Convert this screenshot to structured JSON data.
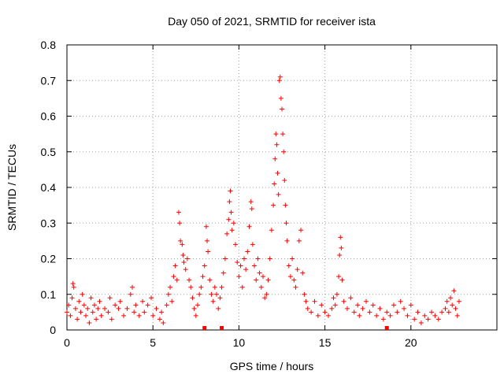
{
  "chart_data": {
    "type": "scatter",
    "title": "Day 050 of 2021, SRMTID for receiver ista",
    "xlabel": "GPS time / hours",
    "ylabel": "SRMTID / TECUs",
    "xlim": [
      0,
      25
    ],
    "ylim": [
      0,
      0.8
    ],
    "xticks": [
      0,
      5,
      10,
      15,
      20
    ],
    "yticks": [
      0,
      0.1,
      0.2,
      0.3,
      0.4,
      0.5,
      0.6,
      0.7,
      0.8
    ],
    "xtick_labels": [
      "0",
      "5",
      "10",
      "15",
      "20"
    ],
    "ytick_labels": [
      "0",
      "0.1",
      "0.2",
      "0.3",
      "0.4",
      "0.5",
      "0.6",
      "0.7",
      "0.8"
    ],
    "grid": true,
    "marker": "+",
    "color": "#ff0000",
    "series": [
      {
        "name": "SRMTID",
        "points": [
          [
            0.0,
            0.05
          ],
          [
            0.1,
            0.07
          ],
          [
            0.2,
            0.04
          ],
          [
            0.3,
            0.09
          ],
          [
            0.35,
            0.13
          ],
          [
            0.4,
            0.12
          ],
          [
            0.5,
            0.06
          ],
          [
            0.6,
            0.03
          ],
          [
            0.7,
            0.08
          ],
          [
            0.8,
            0.05
          ],
          [
            0.9,
            0.1
          ],
          [
            1.0,
            0.07
          ],
          [
            1.1,
            0.04
          ],
          [
            1.2,
            0.06
          ],
          [
            1.3,
            0.02
          ],
          [
            1.4,
            0.09
          ],
          [
            1.5,
            0.05
          ],
          [
            1.6,
            0.07
          ],
          [
            1.7,
            0.03
          ],
          [
            1.8,
            0.06
          ],
          [
            1.9,
            0.08
          ],
          [
            2.0,
            0.04
          ],
          [
            2.2,
            0.06
          ],
          [
            2.4,
            0.05
          ],
          [
            2.5,
            0.09
          ],
          [
            2.6,
            0.03
          ],
          [
            2.8,
            0.07
          ],
          [
            3.0,
            0.06
          ],
          [
            3.1,
            0.08
          ],
          [
            3.3,
            0.04
          ],
          [
            3.5,
            0.06
          ],
          [
            3.7,
            0.1
          ],
          [
            3.8,
            0.12
          ],
          [
            3.9,
            0.05
          ],
          [
            4.0,
            0.07
          ],
          [
            4.2,
            0.04
          ],
          [
            4.4,
            0.08
          ],
          [
            4.5,
            0.05
          ],
          [
            4.7,
            0.07
          ],
          [
            4.9,
            0.09
          ],
          [
            5.0,
            0.04
          ],
          [
            5.2,
            0.06
          ],
          [
            5.4,
            0.03
          ],
          [
            5.5,
            0.05
          ],
          [
            5.6,
            0.02
          ],
          [
            5.8,
            0.07
          ],
          [
            5.9,
            0.1
          ],
          [
            6.0,
            0.12
          ],
          [
            6.1,
            0.08
          ],
          [
            6.2,
            0.15
          ],
          [
            6.3,
            0.18
          ],
          [
            6.4,
            0.14
          ],
          [
            6.5,
            0.33
          ],
          [
            6.55,
            0.3
          ],
          [
            6.6,
            0.25
          ],
          [
            6.7,
            0.24
          ],
          [
            6.75,
            0.21
          ],
          [
            6.8,
            0.19
          ],
          [
            6.9,
            0.17
          ],
          [
            7.0,
            0.2
          ],
          [
            7.1,
            0.14
          ],
          [
            7.2,
            0.12
          ],
          [
            7.3,
            0.09
          ],
          [
            7.4,
            0.06
          ],
          [
            7.5,
            0.04
          ],
          [
            7.6,
            0.07
          ],
          [
            7.7,
            0.1
          ],
          [
            7.8,
            0.12
          ],
          [
            7.9,
            0.15
          ],
          [
            8.0,
            0.18
          ],
          [
            8.1,
            0.29
          ],
          [
            8.15,
            0.25
          ],
          [
            8.2,
            0.22
          ],
          [
            8.3,
            0.14
          ],
          [
            8.4,
            0.1
          ],
          [
            8.5,
            0.08
          ],
          [
            8.6,
            0.12
          ],
          [
            8.7,
            0.1
          ],
          [
            8.8,
            0.06
          ],
          [
            8.9,
            0.09
          ],
          [
            9.0,
            0.12
          ],
          [
            9.1,
            0.16
          ],
          [
            9.2,
            0.2
          ],
          [
            9.3,
            0.27
          ],
          [
            9.4,
            0.31
          ],
          [
            9.45,
            0.36
          ],
          [
            9.5,
            0.39
          ],
          [
            9.55,
            0.33
          ],
          [
            9.6,
            0.28
          ],
          [
            9.7,
            0.3
          ],
          [
            9.8,
            0.24
          ],
          [
            9.9,
            0.19
          ],
          [
            10.0,
            0.15
          ],
          [
            10.1,
            0.18
          ],
          [
            10.2,
            0.12
          ],
          [
            10.3,
            0.2
          ],
          [
            10.4,
            0.17
          ],
          [
            10.5,
            0.22
          ],
          [
            10.6,
            0.29
          ],
          [
            10.7,
            0.36
          ],
          [
            10.75,
            0.34
          ],
          [
            10.8,
            0.24
          ],
          [
            10.9,
            0.18
          ],
          [
            11.0,
            0.14
          ],
          [
            11.1,
            0.2
          ],
          [
            11.2,
            0.16
          ],
          [
            11.3,
            0.12
          ],
          [
            11.4,
            0.15
          ],
          [
            11.5,
            0.09
          ],
          [
            11.6,
            0.1
          ],
          [
            11.7,
            0.14
          ],
          [
            11.8,
            0.2
          ],
          [
            11.9,
            0.28
          ],
          [
            12.0,
            0.35
          ],
          [
            12.05,
            0.41
          ],
          [
            12.1,
            0.48
          ],
          [
            12.15,
            0.55
          ],
          [
            12.2,
            0.52
          ],
          [
            12.25,
            0.44
          ],
          [
            12.3,
            0.38
          ],
          [
            12.35,
            0.7
          ],
          [
            12.4,
            0.71
          ],
          [
            12.45,
            0.65
          ],
          [
            12.5,
            0.62
          ],
          [
            12.55,
            0.55
          ],
          [
            12.6,
            0.5
          ],
          [
            12.65,
            0.42
          ],
          [
            12.7,
            0.35
          ],
          [
            12.75,
            0.3
          ],
          [
            12.8,
            0.25
          ],
          [
            12.9,
            0.18
          ],
          [
            13.0,
            0.15
          ],
          [
            13.1,
            0.2
          ],
          [
            13.2,
            0.14
          ],
          [
            13.3,
            0.12
          ],
          [
            13.4,
            0.17
          ],
          [
            13.5,
            0.25
          ],
          [
            13.6,
            0.28
          ],
          [
            13.7,
            0.16
          ],
          [
            13.8,
            0.1
          ],
          [
            13.9,
            0.08
          ],
          [
            14.0,
            0.06
          ],
          [
            14.2,
            0.05
          ],
          [
            14.4,
            0.08
          ],
          [
            14.6,
            0.04
          ],
          [
            14.8,
            0.07
          ],
          [
            15.0,
            0.05
          ],
          [
            15.2,
            0.04
          ],
          [
            15.4,
            0.06
          ],
          [
            15.5,
            0.09
          ],
          [
            15.6,
            0.07
          ],
          [
            15.7,
            0.1
          ],
          [
            15.8,
            0.15
          ],
          [
            15.85,
            0.21
          ],
          [
            15.9,
            0.26
          ],
          [
            15.95,
            0.23
          ],
          [
            16.0,
            0.14
          ],
          [
            16.1,
            0.08
          ],
          [
            16.3,
            0.06
          ],
          [
            16.5,
            0.09
          ],
          [
            16.7,
            0.05
          ],
          [
            16.9,
            0.07
          ],
          [
            17.0,
            0.04
          ],
          [
            17.2,
            0.06
          ],
          [
            17.4,
            0.08
          ],
          [
            17.6,
            0.05
          ],
          [
            17.8,
            0.07
          ],
          [
            18.0,
            0.04
          ],
          [
            18.2,
            0.06
          ],
          [
            18.4,
            0.03
          ],
          [
            18.6,
            0.05
          ],
          [
            18.8,
            0.04
          ],
          [
            19.0,
            0.07
          ],
          [
            19.2,
            0.05
          ],
          [
            19.4,
            0.08
          ],
          [
            19.6,
            0.06
          ],
          [
            19.8,
            0.04
          ],
          [
            20.0,
            0.07
          ],
          [
            20.2,
            0.03
          ],
          [
            20.4,
            0.05
          ],
          [
            20.6,
            0.02
          ],
          [
            20.8,
            0.04
          ],
          [
            21.0,
            0.03
          ],
          [
            21.2,
            0.05
          ],
          [
            21.4,
            0.04
          ],
          [
            21.6,
            0.03
          ],
          [
            21.8,
            0.05
          ],
          [
            22.0,
            0.06
          ],
          [
            22.1,
            0.08
          ],
          [
            22.2,
            0.05
          ],
          [
            22.3,
            0.09
          ],
          [
            22.4,
            0.07
          ],
          [
            22.5,
            0.11
          ],
          [
            22.6,
            0.06
          ],
          [
            22.7,
            0.04
          ],
          [
            22.8,
            0.08
          ]
        ]
      }
    ],
    "gap_markers_x": [
      8.0,
      9.0,
      18.6
    ]
  }
}
